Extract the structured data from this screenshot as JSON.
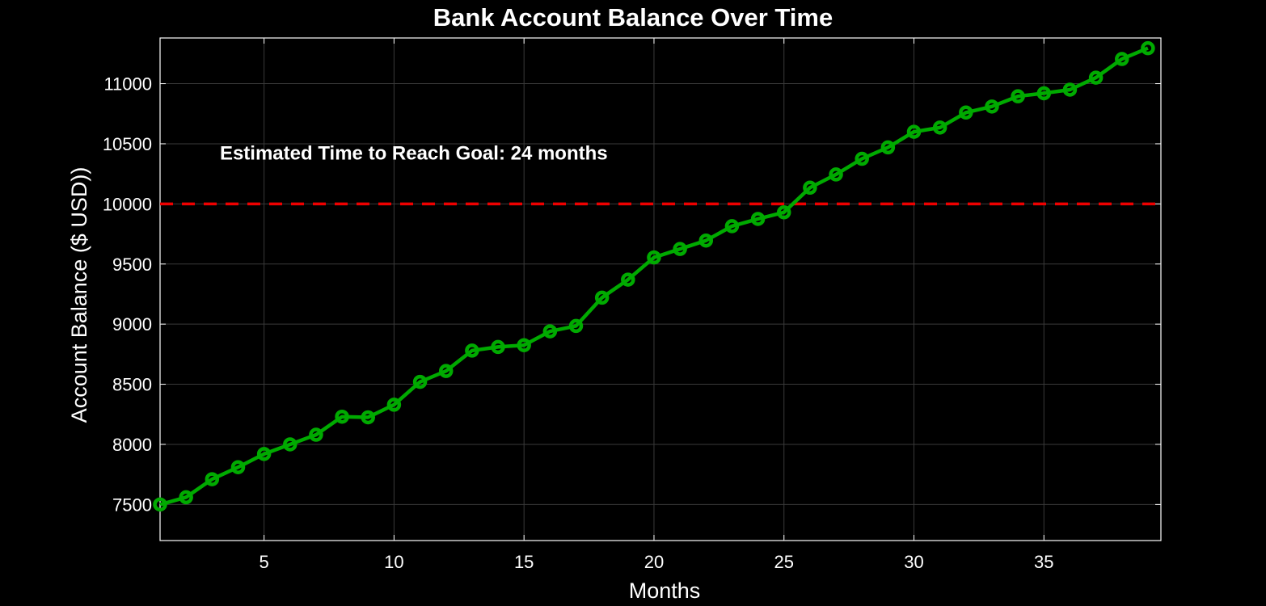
{
  "chart_data": {
    "type": "line",
    "title": "Bank Account Balance Over Time",
    "xlabel": "Months",
    "ylabel": "Account Balance ($ USD))",
    "xlim": [
      1,
      39.5
    ],
    "ylim": [
      7200,
      11380
    ],
    "xticks": [
      5,
      10,
      15,
      20,
      25,
      30,
      35
    ],
    "yticks": [
      7500,
      8000,
      8500,
      9000,
      9500,
      10000,
      10500,
      11000
    ],
    "grid": true,
    "x": [
      1,
      2,
      3,
      4,
      5,
      6,
      7,
      8,
      9,
      10,
      11,
      12,
      13,
      14,
      15,
      16,
      17,
      18,
      19,
      20,
      21,
      22,
      23,
      24,
      25,
      26,
      27,
      28,
      29,
      30,
      31,
      32,
      33,
      34,
      35,
      36,
      37,
      38,
      39
    ],
    "series": [
      {
        "color": "#00aa00",
        "marker": "circle",
        "values": [
          7500,
          7560,
          7710,
          7810,
          7920,
          8000,
          8080,
          8230,
          8225,
          8330,
          8520,
          8610,
          8780,
          8810,
          8825,
          8940,
          8985,
          9220,
          9370,
          9555,
          9625,
          9695,
          9815,
          9875,
          9930,
          10135,
          10245,
          10375,
          10470,
          10600,
          10635,
          10760,
          10810,
          10895,
          10920,
          10950,
          11050,
          11205,
          11295
        ]
      }
    ],
    "goal_line": {
      "value": 10000,
      "color": "#ee0000",
      "style": "dashed"
    },
    "annotation": {
      "text": "Estimated Time to Reach Goal: 24 months",
      "x": 3.3,
      "y": 10370
    }
  }
}
